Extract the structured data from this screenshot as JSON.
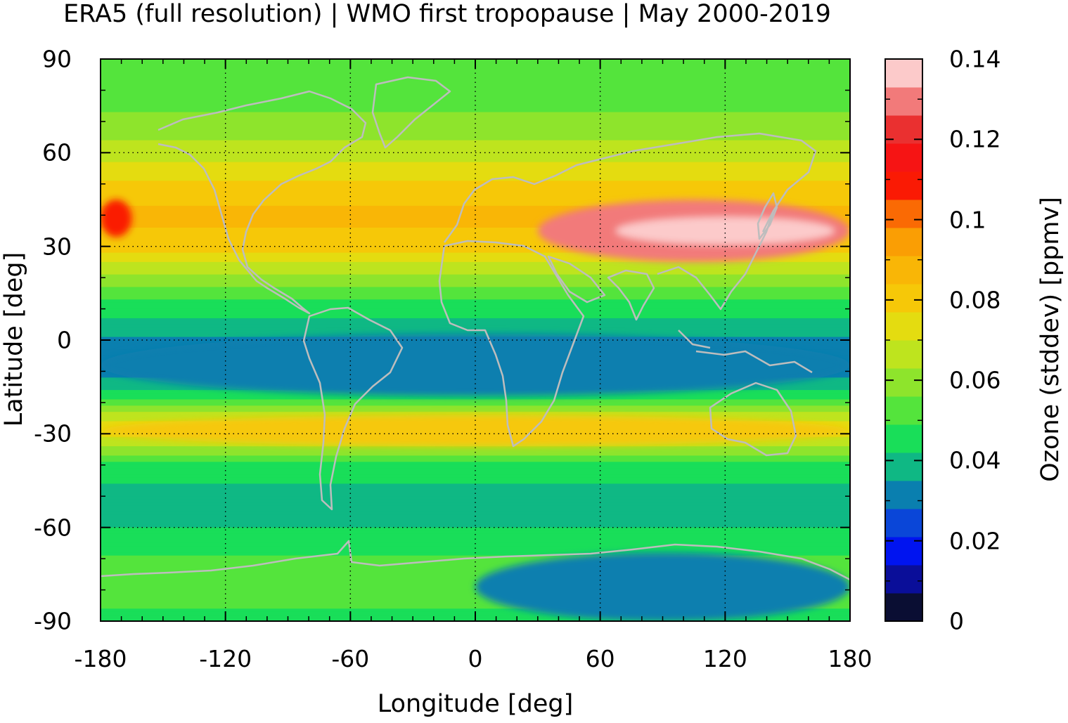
{
  "title": "ERA5 (full resolution) | WMO first tropopause | May 2000-2019",
  "chart_data": {
    "type": "heatmap",
    "title": "ERA5 (full resolution) | WMO first tropopause | May 2000-2019",
    "xlabel": "Longitude [deg]",
    "ylabel": "Latitude [deg]",
    "colorbar_label": "Ozone (stddev) [ppmv]",
    "xlim": [
      -180,
      180
    ],
    "ylim": [
      -90,
      90
    ],
    "xticks": [
      "-180",
      "-120",
      "-60",
      "0",
      "60",
      "120",
      "180"
    ],
    "yticks": [
      "90",
      "60",
      "30",
      "0",
      "-30",
      "-60",
      "-90"
    ],
    "colorbar_ticks": [
      "0.14",
      "0.12",
      "0.1",
      "0.08",
      "0.06",
      "0.04",
      "0.02",
      "0"
    ],
    "colorbar_range": [
      0,
      0.14
    ],
    "grid": true,
    "colorbar_levels": [
      {
        "from": 0.0,
        "to": 0.007,
        "color": "#0a0e33"
      },
      {
        "from": 0.007,
        "to": 0.014,
        "color": "#0a0e99"
      },
      {
        "from": 0.014,
        "to": 0.021,
        "color": "#0014f0"
      },
      {
        "from": 0.021,
        "to": 0.028,
        "color": "#0a46d8"
      },
      {
        "from": 0.028,
        "to": 0.035,
        "color": "#0a7faf"
      },
      {
        "from": 0.035,
        "to": 0.042,
        "color": "#0fb884"
      },
      {
        "from": 0.042,
        "to": 0.049,
        "color": "#19de59"
      },
      {
        "from": 0.049,
        "to": 0.056,
        "color": "#54e43c"
      },
      {
        "from": 0.056,
        "to": 0.063,
        "color": "#8ee42c"
      },
      {
        "from": 0.063,
        "to": 0.07,
        "color": "#bee41e"
      },
      {
        "from": 0.07,
        "to": 0.077,
        "color": "#e4dc10"
      },
      {
        "from": 0.077,
        "to": 0.084,
        "color": "#f6c808"
      },
      {
        "from": 0.084,
        "to": 0.091,
        "color": "#f9b606"
      },
      {
        "from": 0.091,
        "to": 0.098,
        "color": "#fa9e04"
      },
      {
        "from": 0.098,
        "to": 0.105,
        "color": "#fa6a04"
      },
      {
        "from": 0.105,
        "to": 0.112,
        "color": "#fa1a04"
      },
      {
        "from": 0.112,
        "to": 0.119,
        "color": "#f61414"
      },
      {
        "from": 0.119,
        "to": 0.126,
        "color": "#ea3030"
      },
      {
        "from": 0.126,
        "to": 0.133,
        "color": "#f27a7a"
      },
      {
        "from": 0.133,
        "to": 0.14,
        "color": "#fccaca"
      }
    ],
    "zonal_profile": [
      {
        "lat": 90,
        "value": 0.05
      },
      {
        "lat": 80,
        "value": 0.052
      },
      {
        "lat": 70,
        "value": 0.058
      },
      {
        "lat": 60,
        "value": 0.067
      },
      {
        "lat": 50,
        "value": 0.078
      },
      {
        "lat": 40,
        "value": 0.087
      },
      {
        "lat": 30,
        "value": 0.08
      },
      {
        "lat": 20,
        "value": 0.06
      },
      {
        "lat": 10,
        "value": 0.045
      },
      {
        "lat": 0,
        "value": 0.034
      },
      {
        "lat": -10,
        "value": 0.032
      },
      {
        "lat": -18,
        "value": 0.045
      },
      {
        "lat": -28,
        "value": 0.078
      },
      {
        "lat": -40,
        "value": 0.047
      },
      {
        "lat": -50,
        "value": 0.038
      },
      {
        "lat": -60,
        "value": 0.042
      },
      {
        "lat": -70,
        "value": 0.05
      },
      {
        "lat": -80,
        "value": 0.055
      },
      {
        "lat": -90,
        "value": 0.045
      }
    ],
    "features": [
      {
        "name": "asian-jet-maximum",
        "lon_range": [
          30,
          180
        ],
        "lat_range": [
          25,
          45
        ],
        "value": 0.13
      },
      {
        "name": "pacific-maximum",
        "lon_range": [
          -180,
          -165
        ],
        "lat_range": [
          33,
          45
        ],
        "value": 0.11
      },
      {
        "name": "equatorial-minimum",
        "lon_range": [
          -180,
          180
        ],
        "lat_range": [
          -18,
          2
        ],
        "value": 0.033
      },
      {
        "name": "southern-subtropical-band",
        "lon_range": [
          -180,
          180
        ],
        "lat_range": [
          -34,
          -24
        ],
        "value": 0.078
      },
      {
        "name": "antarctic-low",
        "lon_range": [
          0,
          180
        ],
        "lat_range": [
          -90,
          -68
        ],
        "value": 0.033
      }
    ]
  }
}
